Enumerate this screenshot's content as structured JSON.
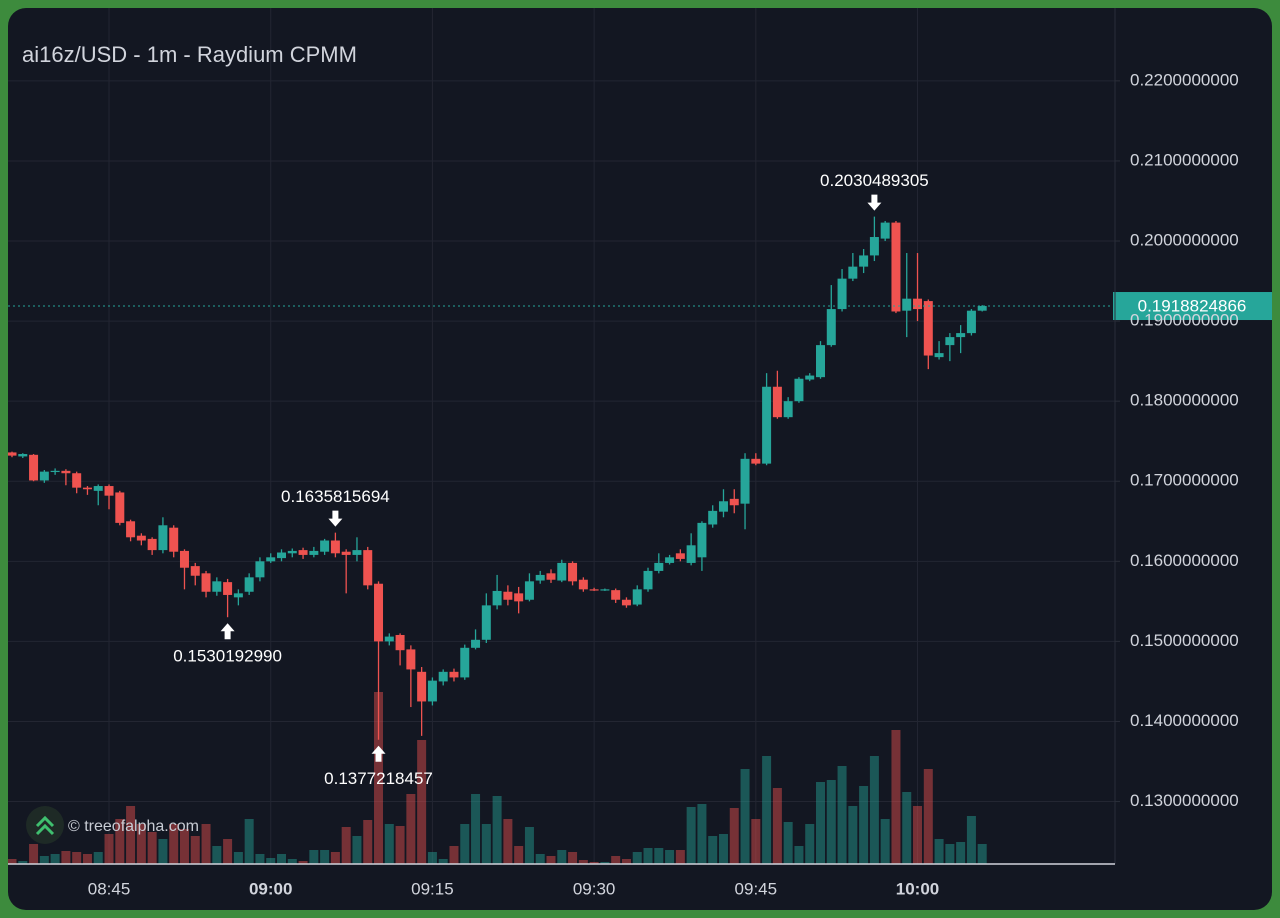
{
  "chart_data": {
    "type": "candlestick",
    "title": "ai16z/USD - 1m - Raydium CPMM",
    "watermark": "© treeofalpha.com",
    "x": [
      "08:36",
      "08:37",
      "08:38",
      "08:39",
      "08:40",
      "08:41",
      "08:42",
      "08:43",
      "08:44",
      "08:45",
      "08:46",
      "08:47",
      "08:48",
      "08:49",
      "08:50",
      "08:51",
      "08:52",
      "08:53",
      "08:54",
      "08:55",
      "08:56",
      "08:57",
      "08:58",
      "08:59",
      "09:00",
      "09:01",
      "09:02",
      "09:03",
      "09:04",
      "09:05",
      "09:06",
      "09:07",
      "09:08",
      "09:09",
      "09:10",
      "09:11",
      "09:12",
      "09:13",
      "09:14",
      "09:15",
      "09:16",
      "09:17",
      "09:18",
      "09:19",
      "09:20",
      "09:21",
      "09:22",
      "09:23",
      "09:24",
      "09:25",
      "09:26",
      "09:27",
      "09:28",
      "09:29",
      "09:30",
      "09:31",
      "09:32",
      "09:33",
      "09:34",
      "09:35",
      "09:36",
      "09:37",
      "09:38",
      "09:39",
      "09:40",
      "09:41",
      "09:42",
      "09:43",
      "09:44",
      "09:45",
      "09:46",
      "09:47",
      "09:48",
      "09:49",
      "09:50",
      "09:51",
      "09:52",
      "09:53",
      "09:54",
      "09:55",
      "09:56",
      "09:57",
      "09:58",
      "09:59",
      "10:00",
      "10:01",
      "10:02",
      "10:03",
      "10:04",
      "10:05",
      "10:06"
    ],
    "open": [
      0.1736,
      0.1731,
      0.1733,
      0.1701,
      0.1712,
      0.1713,
      0.171,
      0.1692,
      0.1688,
      0.1694,
      0.1686,
      0.165,
      0.1632,
      0.1628,
      0.1614,
      0.1642,
      0.1613,
      0.1594,
      0.1585,
      0.1562,
      0.1574,
      0.1555,
      0.1562,
      0.158,
      0.16,
      0.1604,
      0.161,
      0.1614,
      0.1608,
      0.1612,
      0.1626,
      0.1612,
      0.1608,
      0.1614,
      0.1572,
      0.15,
      0.1508,
      0.149,
      0.1462,
      0.1425,
      0.145,
      0.1462,
      0.1455,
      0.1492,
      0.1502,
      0.1545,
      0.1562,
      0.156,
      0.1552,
      0.1576,
      0.1585,
      0.1576,
      0.1598,
      0.1577,
      0.1565,
      0.1564,
      0.1564,
      0.1552,
      0.1546,
      0.1565,
      0.1588,
      0.1598,
      0.161,
      0.1598,
      0.1605,
      0.1646,
      0.1662,
      0.1678,
      0.1672,
      0.1728,
      0.1722,
      0.1818,
      0.178,
      0.18,
      0.1827,
      0.183,
      0.187,
      0.1915,
      0.1953,
      0.1968,
      0.1982,
      0.2003,
      0.2023,
      0.1913,
      0.1928,
      0.1925,
      0.1855,
      0.187,
      0.188,
      0.1885,
      0.1913
    ],
    "high": [
      0.1737,
      0.1735,
      0.1734,
      0.1714,
      0.1716,
      0.1715,
      0.1712,
      0.1694,
      0.1696,
      0.1696,
      0.1688,
      0.1652,
      0.1635,
      0.163,
      0.1655,
      0.1645,
      0.1615,
      0.1598,
      0.1588,
      0.158,
      0.1578,
      0.1565,
      0.1585,
      0.1605,
      0.161,
      0.1615,
      0.1616,
      0.1617,
      0.1618,
      0.1628,
      0.1635815694,
      0.1615,
      0.163,
      0.1618,
      0.1575,
      0.151,
      0.151,
      0.1495,
      0.1468,
      0.1455,
      0.1465,
      0.1466,
      0.1496,
      0.1515,
      0.156,
      0.1583,
      0.157,
      0.1568,
      0.1585,
      0.1588,
      0.159,
      0.1602,
      0.16,
      0.158,
      0.1567,
      0.1566,
      0.1566,
      0.1555,
      0.157,
      0.1592,
      0.161,
      0.1608,
      0.1615,
      0.1635,
      0.165,
      0.167,
      0.169,
      0.169,
      0.1735,
      0.1735,
      0.1835,
      0.1838,
      0.1805,
      0.183,
      0.1835,
      0.1875,
      0.1945,
      0.1965,
      0.1985,
      0.199,
      0.2030489305,
      0.2025,
      0.2025,
      0.1985,
      0.1985,
      0.1927,
      0.1875,
      0.1885,
      0.1895,
      0.1915,
      0.192
    ],
    "low": [
      0.173,
      0.1729,
      0.17,
      0.1698,
      0.1708,
      0.1695,
      0.1685,
      0.1683,
      0.167,
      0.1665,
      0.1645,
      0.1625,
      0.162,
      0.1608,
      0.161,
      0.1605,
      0.1565,
      0.157,
      0.1555,
      0.1557,
      0.153019299,
      0.1545,
      0.1558,
      0.1575,
      0.1598,
      0.16,
      0.1605,
      0.1603,
      0.1605,
      0.1608,
      0.1605,
      0.156,
      0.16,
      0.1565,
      0.1377218457,
      0.1495,
      0.147,
      0.1418,
      0.1382,
      0.142,
      0.1445,
      0.145,
      0.1452,
      0.149,
      0.1498,
      0.154,
      0.1545,
      0.1535,
      0.155,
      0.1572,
      0.1573,
      0.1574,
      0.157,
      0.1562,
      0.1563,
      0.1563,
      0.1548,
      0.1542,
      0.1544,
      0.1562,
      0.1585,
      0.1596,
      0.16,
      0.1595,
      0.1588,
      0.1642,
      0.1655,
      0.166,
      0.164,
      0.172,
      0.172,
      0.1778,
      0.1778,
      0.1798,
      0.1825,
      0.1828,
      0.1868,
      0.1912,
      0.195,
      0.196,
      0.1975,
      0.2,
      0.191,
      0.188,
      0.19,
      0.184,
      0.1852,
      0.185,
      0.186,
      0.1882,
      0.1912
    ],
    "close": [
      0.1732,
      0.1734,
      0.1701,
      0.1712,
      0.1713,
      0.171,
      0.1692,
      0.169,
      0.1694,
      0.1682,
      0.1648,
      0.163,
      0.1626,
      0.1614,
      0.1645,
      0.1612,
      0.1592,
      0.1582,
      0.1562,
      0.1575,
      0.1558,
      0.156,
      0.158,
      0.16,
      0.1605,
      0.1611,
      0.1613,
      0.1608,
      0.1613,
      0.1626,
      0.161,
      0.1608,
      0.1614,
      0.157,
      0.15,
      0.1506,
      0.1489,
      0.1465,
      0.1425,
      0.1451,
      0.1462,
      0.1455,
      0.1492,
      0.1502,
      0.1545,
      0.1563,
      0.1552,
      0.155,
      0.1575,
      0.1583,
      0.1577,
      0.1598,
      0.1575,
      0.1565,
      0.1564,
      0.1565,
      0.1552,
      0.1545,
      0.1565,
      0.1588,
      0.1598,
      0.1605,
      0.1603,
      0.162,
      0.1648,
      0.1663,
      0.1675,
      0.167,
      0.1728,
      0.1722,
      0.1818,
      0.178,
      0.18,
      0.1828,
      0.1832,
      0.187,
      0.1915,
      0.1953,
      0.1968,
      0.1982,
      0.2005,
      0.2023,
      0.1912,
      0.1928,
      0.1915,
      0.1857,
      0.186,
      0.188,
      0.1885,
      0.1913,
      0.1918824866
    ],
    "volume": [
      5,
      3,
      20,
      8,
      10,
      13,
      12,
      10,
      12,
      30,
      45,
      58,
      40,
      32,
      25,
      40,
      35,
      28,
      40,
      18,
      25,
      12,
      45,
      10,
      6,
      10,
      5,
      3,
      14,
      14,
      12,
      37,
      28,
      44,
      172,
      40,
      38,
      70,
      124,
      12,
      5,
      18,
      40,
      70,
      40,
      68,
      45,
      18,
      37,
      10,
      8,
      14,
      12,
      4,
      2,
      2,
      8,
      5,
      12,
      16,
      16,
      14,
      14,
      57,
      60,
      28,
      30,
      56,
      95,
      45,
      108,
      76,
      42,
      18,
      40,
      82,
      84,
      98,
      58,
      78,
      108,
      45,
      134,
      72,
      58,
      95,
      25,
      20,
      22,
      48,
      20
    ],
    "up_color": "#26a69a",
    "down_color": "#ef5350",
    "grid": true,
    "ylim": [
      0.1222,
      0.2291
    ],
    "yticks": [
      {
        "value": 0.13,
        "label": "0.1300000000"
      },
      {
        "value": 0.14,
        "label": "0.1400000000"
      },
      {
        "value": 0.15,
        "label": "0.1500000000"
      },
      {
        "value": 0.16,
        "label": "0.1600000000"
      },
      {
        "value": 0.17,
        "label": "0.1700000000"
      },
      {
        "value": 0.18,
        "label": "0.1800000000"
      },
      {
        "value": 0.19,
        "label": "0.1900000000"
      },
      {
        "value": 0.2,
        "label": "0.2000000000"
      },
      {
        "value": 0.21,
        "label": "0.2100000000"
      },
      {
        "value": 0.22,
        "label": "0.2200000000"
      }
    ],
    "xticks": [
      "08:45",
      "09:00",
      "09:15",
      "09:30",
      "09:45",
      "10:00"
    ],
    "last_price": {
      "value": 0.1918824866,
      "label": "0.1918824866"
    },
    "markers": [
      {
        "x": "08:56",
        "value": 0.153019299,
        "label": "0.1530192990",
        "side": "below"
      },
      {
        "x": "09:06",
        "value": 0.1635815694,
        "label": "0.1635815694",
        "side": "above"
      },
      {
        "x": "09:10",
        "value": 0.1377218457,
        "label": "0.1377218457",
        "side": "below"
      },
      {
        "x": "09:56",
        "value": 0.2030489305,
        "label": "0.2030489305",
        "side": "above"
      }
    ]
  }
}
